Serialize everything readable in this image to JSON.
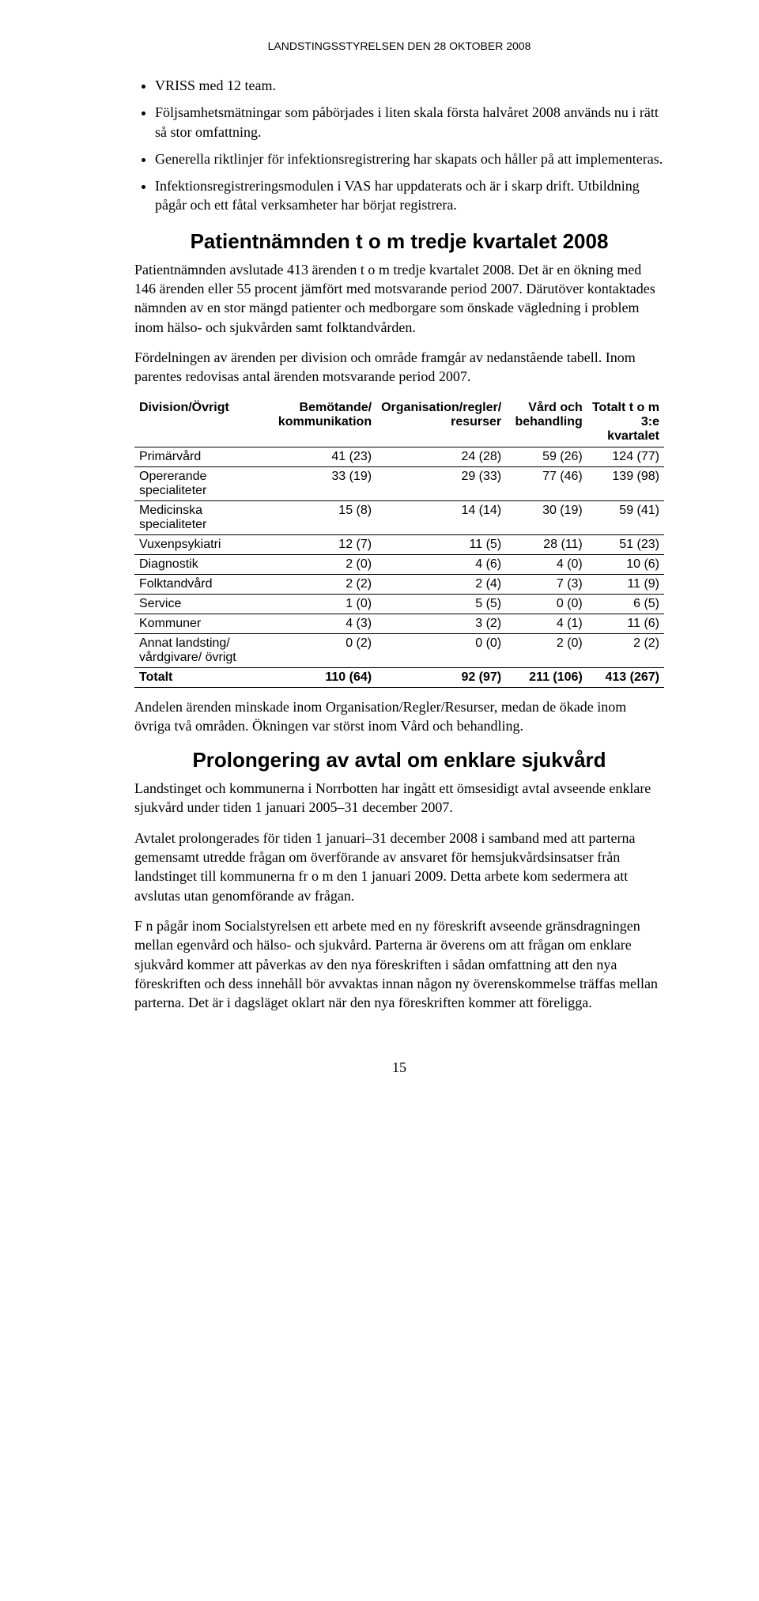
{
  "header": "LANDSTINGSSTYRELSEN DEN 28 OKTOBER 2008",
  "bullets": [
    "VRISS med 12 team.",
    "Följsamhetsmätningar som påbörjades i liten skala första halvåret 2008 används nu i rätt så stor omfattning.",
    "Generella riktlinjer för infektionsregistrering har skapats och håller på att implementeras.",
    "Infektionsregistreringsmodulen i VAS har uppdaterats och är i skarp drift. Utbildning pågår och ett fåtal verksamheter har börjat registrera."
  ],
  "section1": {
    "title": "Patientnämnden t o m tredje kvartalet 2008",
    "p1": "Patientnämnden avslutade 413 ärenden t o m tredje kvartalet 2008. Det är en ökning med 146 ärenden eller 55 procent jämfört med motsvarande period 2007. Därutöver kontaktades nämnden av en stor mängd patienter och medborgare som önskade vägledning i problem inom hälso- och sjukvården samt folktandvården.",
    "p2": "Fördelningen av ärenden per division och område framgår av nedanstående tabell. Inom parentes redovisas antal ärenden motsvarande period 2007."
  },
  "table": {
    "columns": [
      "Division/Övrigt",
      "Bemötande/ kommunikation",
      "Organisation/regler/ resurser",
      "Vård och behandling",
      "Totalt t o m 3:e kvartalet"
    ],
    "col_widths": [
      "34%",
      "17%",
      "16%",
      "16%",
      "17%"
    ],
    "rows": [
      [
        "Primärvård",
        "41 (23)",
        "24 (28)",
        "59 (26)",
        "124 (77)"
      ],
      [
        "Opererande specialiteter",
        "33 (19)",
        "29 (33)",
        "77 (46)",
        "139 (98)"
      ],
      [
        "Medicinska specialiteter",
        "15 (8)",
        "14 (14)",
        "30 (19)",
        "59 (41)"
      ],
      [
        "Vuxenpsykiatri",
        "12 (7)",
        "11 (5)",
        "28 (11)",
        "51 (23)"
      ],
      [
        "Diagnostik",
        "2 (0)",
        "4 (6)",
        "4 (0)",
        "10 (6)"
      ],
      [
        "Folktandvård",
        "2 (2)",
        "2 (4)",
        "7 (3)",
        "11 (9)"
      ],
      [
        "Service",
        "1 (0)",
        "5 (5)",
        "0 (0)",
        "6 (5)"
      ],
      [
        "Kommuner",
        "4 (3)",
        "3 (2)",
        "4 (1)",
        "11 (6)"
      ],
      [
        "Annat landsting/ vårdgivare/ övrigt",
        "0 (2)",
        "0 (0)",
        "2 (0)",
        "2 (2)"
      ]
    ],
    "total": [
      "Totalt",
      "110 (64)",
      "92 (97)",
      "211 (106)",
      "413 (267)"
    ],
    "header_fontsize": 16,
    "body_fontsize": 16,
    "border_color": "#000000"
  },
  "after_table": "Andelen ärenden minskade inom Organisation/Regler/Resurser, medan de ökade inom övriga två områden. Ökningen var störst inom Vård och behandling.",
  "section2": {
    "title": "Prolongering av avtal om enklare sjukvård",
    "p1": "Landstinget och kommunerna i Norrbotten har ingått ett ömsesidigt avtal avseende enklare sjukvård under tiden 1 januari 2005–31 december 2007.",
    "p2": "Avtalet prolongerades för tiden 1 januari–31 december 2008 i samband med att parterna gemensamt utredde frågan om överförande av ansvaret för hemsjukvårdsinsatser från landstinget till kommunerna fr o m den 1 januari 2009. Detta arbete kom sedermera att avslutas utan genomförande av frågan.",
    "p3": "F n pågår inom Socialstyrelsen ett arbete med en ny föreskrift avseende gränsdragningen mellan egenvård och hälso- och sjukvård. Parterna är överens om att frågan om enklare sjukvård kommer att påverkas av den nya föreskriften i sådan omfattning att den nya föreskriften och dess innehåll bör avvaktas innan någon ny överenskommelse träffas mellan parterna. Det är i dagsläget oklart när den nya föreskriften kommer att föreligga."
  },
  "page_number": "15"
}
